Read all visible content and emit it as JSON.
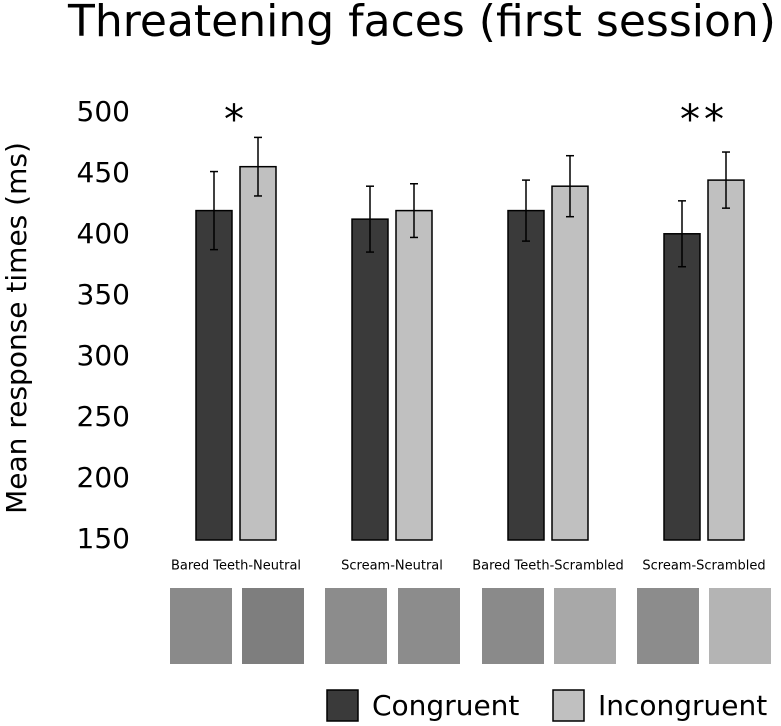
{
  "chart_data": {
    "type": "bar",
    "title": "Threatening faces (first session)",
    "y_label": "Mean response times (ms)",
    "categories": [
      "Bared Teeth-Neutral",
      "Scream-Neutral",
      "Bared Teeth-Scrambled",
      "Scream-Scrambled"
    ],
    "series": [
      {
        "name": "Congruent",
        "color": "#3a3a3a",
        "values": [
          420,
          413,
          420,
          401
        ],
        "errors": [
          32,
          27,
          25,
          27
        ]
      },
      {
        "name": "Incongruent",
        "color": "#c0c0c0",
        "values": [
          456,
          420,
          440,
          445
        ],
        "errors": [
          24,
          22,
          25,
          23
        ]
      }
    ],
    "annotations": [
      {
        "text": "*",
        "category": 0
      },
      {
        "text": "**",
        "category": 3
      }
    ],
    "ylim": [
      150,
      500
    ],
    "yticks": [
      150,
      200,
      250,
      300,
      350,
      400,
      450,
      500
    ],
    "grid": false
  }
}
